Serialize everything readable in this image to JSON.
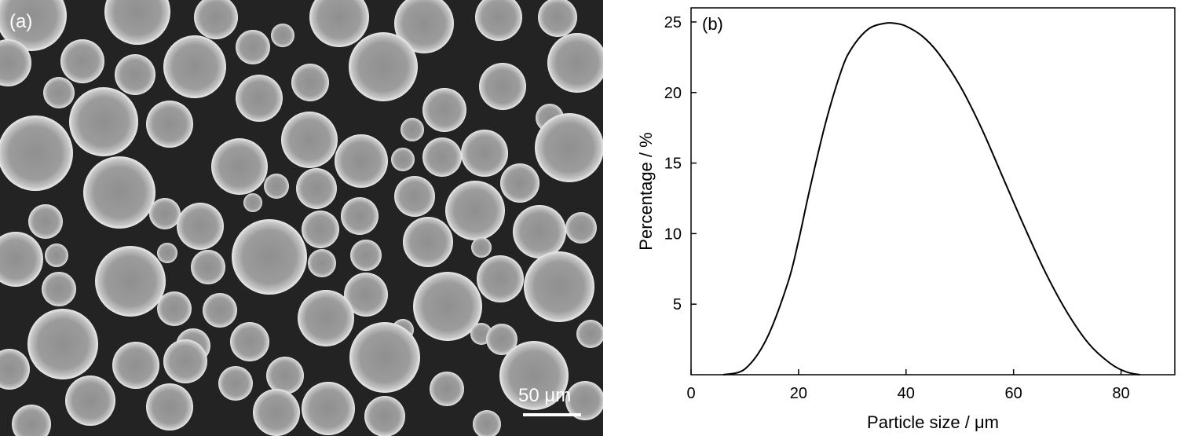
{
  "panel_a": {
    "label": "(a)",
    "scalebar_label": "50 μm",
    "background_color": "#232323",
    "particle_color": "#9a9a9a",
    "particle_highlight": "#e6e6e6"
  },
  "chart_data": {
    "type": "line",
    "panel_label": "(b)",
    "xlabel": "Particle size / μm",
    "ylabel": "Percentage / %",
    "xlim": [
      0,
      90
    ],
    "ylim": [
      0,
      26
    ],
    "xticks": [
      0,
      20,
      40,
      60,
      80
    ],
    "yticks": [
      5,
      10,
      15,
      20,
      25
    ],
    "grid": false,
    "series": [
      {
        "x": [
          6,
          10,
          14,
          18,
          20,
          22,
          25,
          28,
          30,
          33,
          36,
          38,
          40,
          43,
          46,
          50,
          54,
          58,
          62,
          66,
          70,
          74,
          78,
          81,
          83.5
        ],
        "y": [
          0,
          0.4,
          2.5,
          6.5,
          9.5,
          13,
          17.8,
          21.6,
          23.2,
          24.5,
          24.9,
          24.9,
          24.7,
          24.0,
          22.8,
          20.5,
          17.5,
          14,
          10.5,
          7.2,
          4.4,
          2.2,
          0.8,
          0.2,
          0
        ]
      }
    ]
  }
}
